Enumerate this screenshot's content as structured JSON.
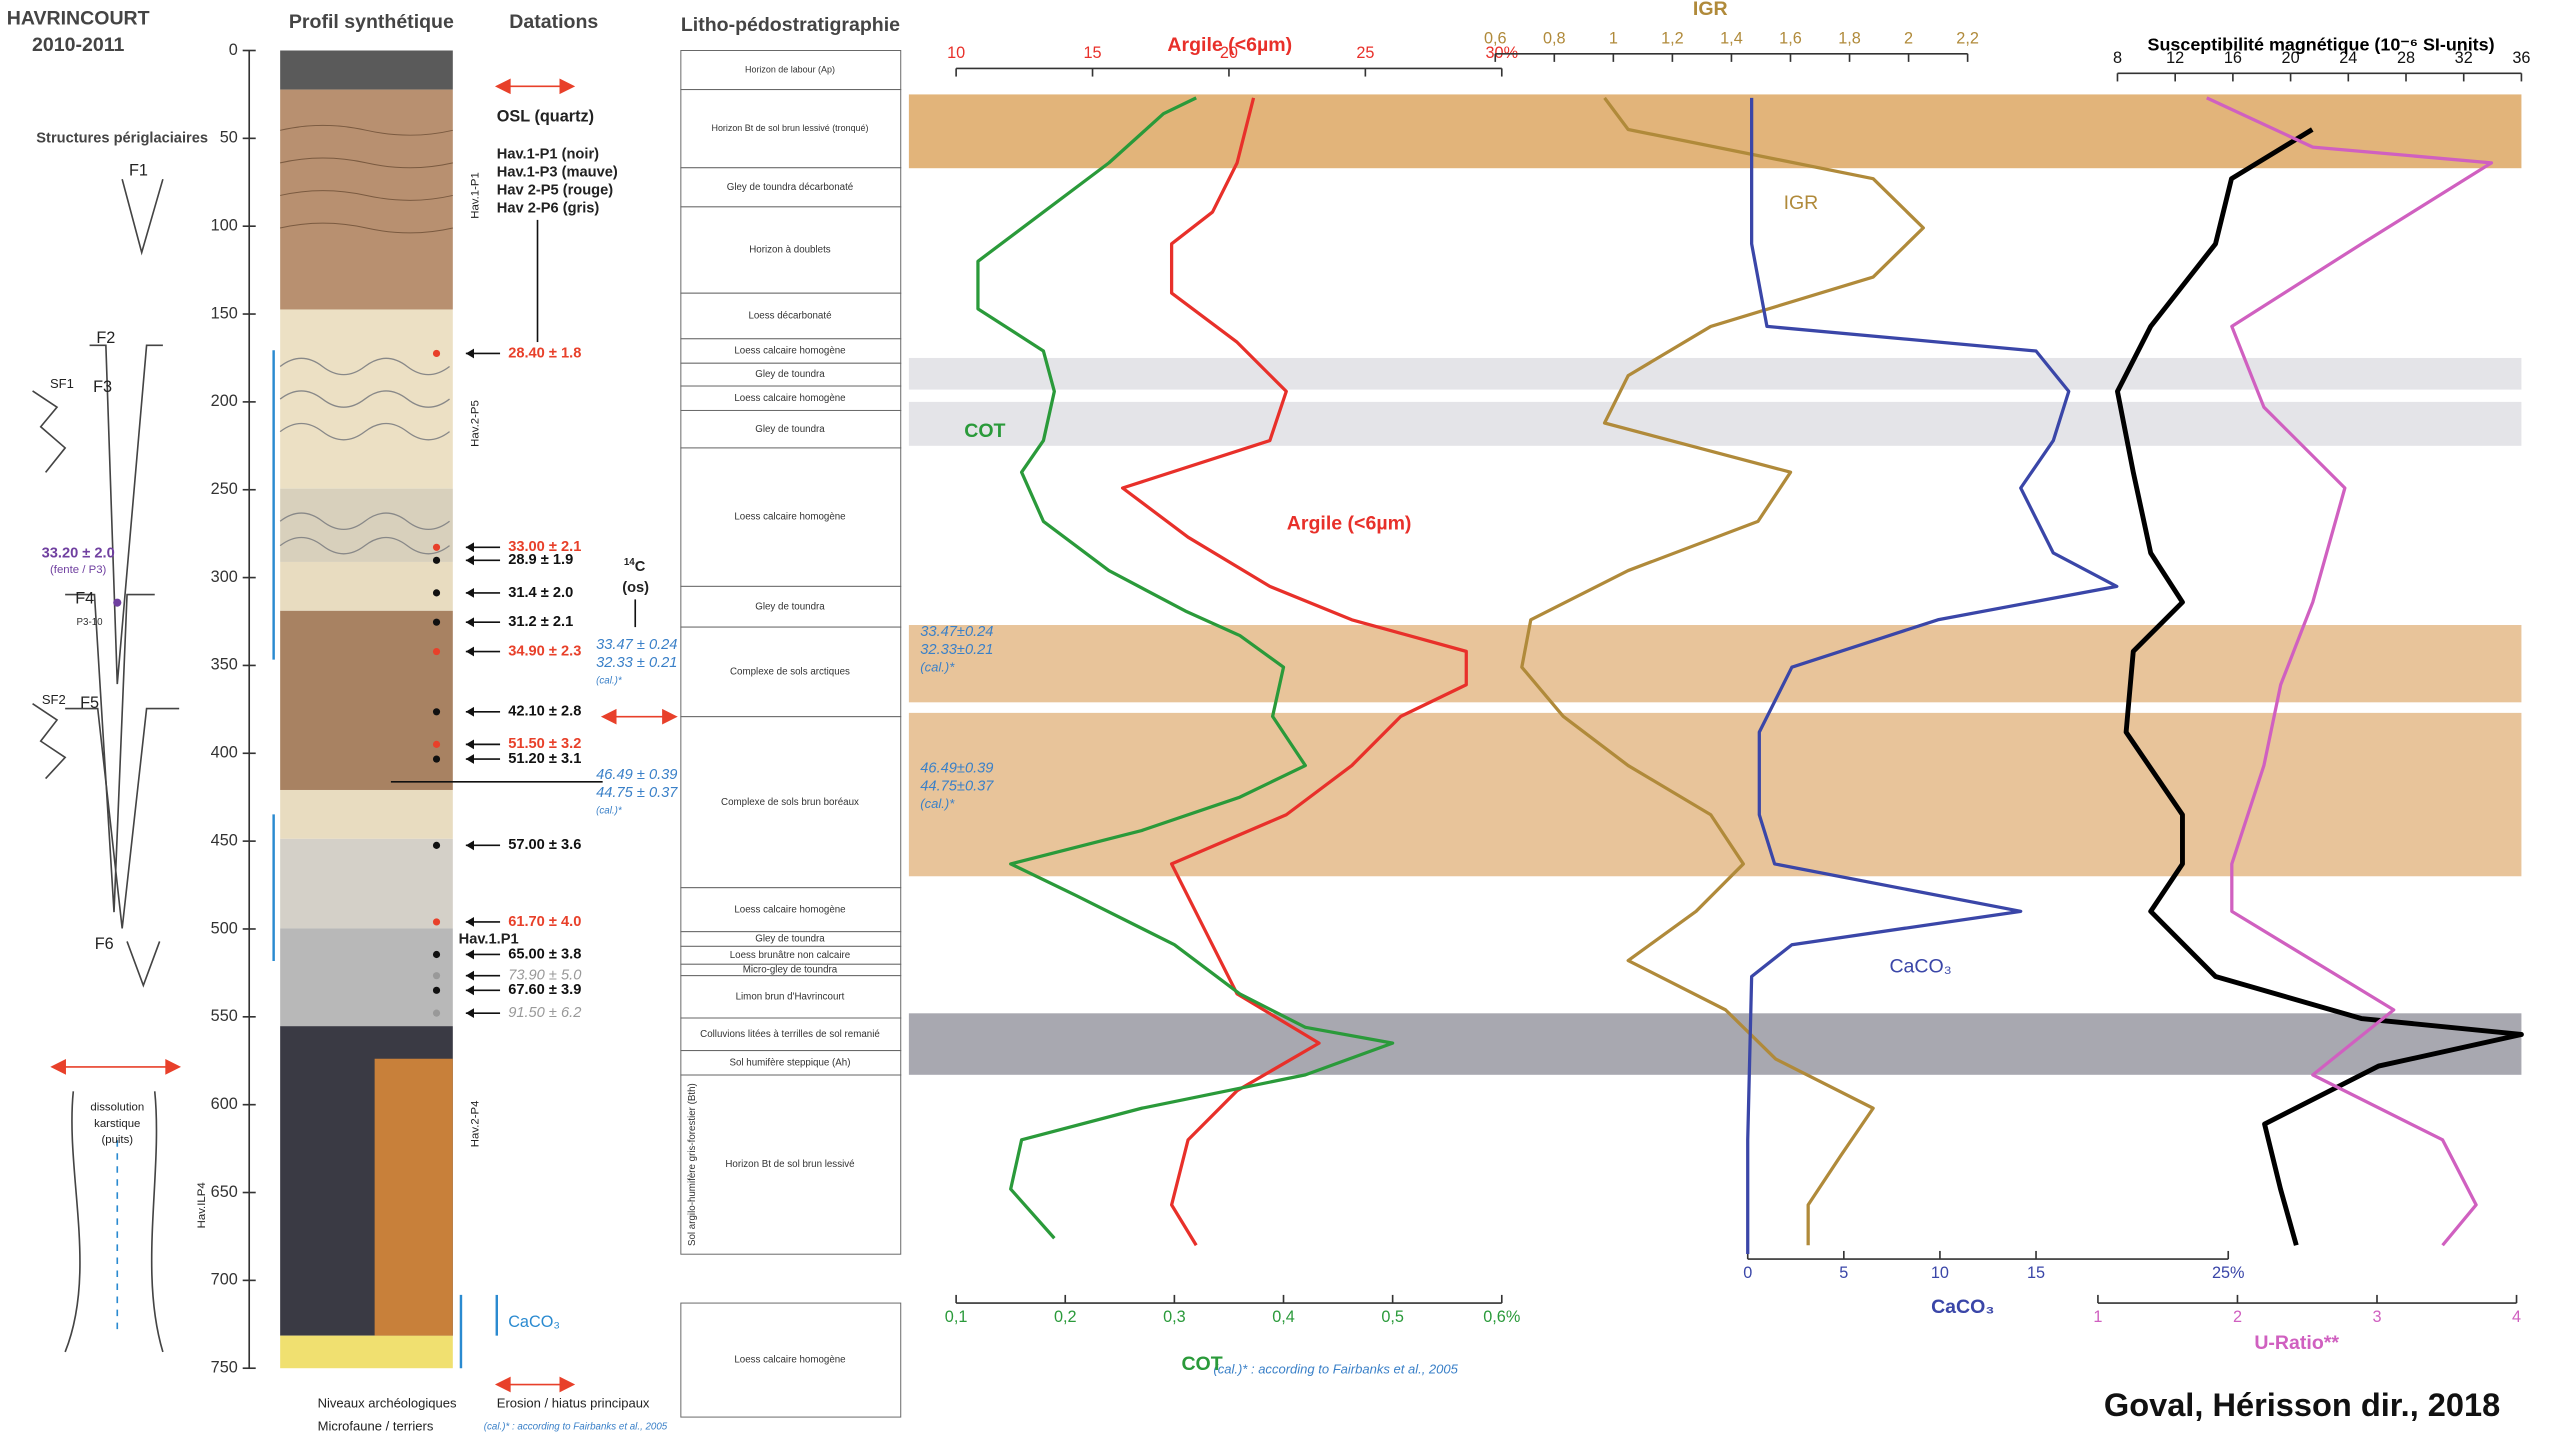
{
  "header": {
    "title": "HAVRINCOURT",
    "subtitle": "2010-2011",
    "credit": "Goval, Hérisson dir., 2018"
  },
  "columns": {
    "structures": "Structures périglaciaires",
    "profile": "Profil synthétique",
    "datations": "Datations",
    "litho": "Litho-pédostratigraphie"
  },
  "structures": {
    "labels": [
      "F1",
      "F2",
      "F3",
      "SF1",
      "F4",
      "SF2",
      "F5",
      "F6"
    ],
    "date": "33.20 ± 2.0",
    "date_note": "(fente / P3)",
    "sample": "P3-10",
    "karst": [
      "dissolution",
      "karstique",
      "(puits)"
    ]
  },
  "profile": {
    "sections": [
      "Hav.1-P1",
      "Hav.2-P5",
      "Hav.1.P1",
      "Hav.2-P4",
      "Hav.ILP4"
    ],
    "caco3": "CaCO₃"
  },
  "osl_legend": {
    "title": "OSL (quartz)",
    "items": [
      "Hav.1-P1 (noir)",
      "Hav.1-P3 (mauve)",
      "Hav 2-P5 (rouge)",
      "Hav 2-P6 (gris)"
    ]
  },
  "c14": {
    "mass": "14",
    "element": "C",
    "note": "(os)"
  },
  "datations": [
    {
      "label": "28.40 ± 1.8",
      "color": "#e8402a"
    },
    {
      "label": "33.00 ± 2.1",
      "color": "#e8402a"
    },
    {
      "label": "28.9 ± 1.9",
      "color": "#111111"
    },
    {
      "label": "31.4 ± 2.0",
      "color": "#111111"
    },
    {
      "label": "31.2 ± 2.1",
      "color": "#111111"
    },
    {
      "label": "34.90 ± 2.3",
      "color": "#e8402a"
    },
    {
      "label": "42.10 ± 2.8",
      "color": "#111111"
    },
    {
      "label": "51.50 ± 3.2",
      "color": "#e8402a"
    },
    {
      "label": "51.20 ± 3.1",
      "color": "#111111"
    },
    {
      "label": "57.00 ± 3.6",
      "color": "#111111"
    },
    {
      "label": "61.70 ± 4.0",
      "color": "#e8402a"
    },
    {
      "label": "65.00 ± 3.8",
      "color": "#111111"
    },
    {
      "label": "73.90 ± 5.0",
      "color": "#999999"
    },
    {
      "label": "67.60 ± 3.9",
      "color": "#111111"
    },
    {
      "label": "91.50 ± 6.2",
      "color": "#999999"
    }
  ],
  "calibrated": [
    [
      "33.47 ± 0.24",
      "32.33 ± 0.21",
      "(cal.)*"
    ],
    [
      "46.49 ± 0.39",
      "44.75 ± 0.37",
      "(cal.)*"
    ]
  ],
  "calibrated_chart": [
    [
      "33.47±0.24",
      "32.33±0.21",
      "(cal.)*"
    ],
    [
      "46.49±0.39",
      "44.75±0.37",
      "(cal.)*"
    ]
  ],
  "litho": [
    "Horizon de labour (Ap)",
    "Horizon Bt de sol brun lessivé (tronqué)",
    "Gley de toundra décarbonaté",
    "Horizon à doublets",
    "Loess décarbonaté",
    "Loess calcaire homogène",
    "Gley de toundra",
    "Loess calcaire homogène",
    "Gley de toundra",
    "Loess calcaire homogène",
    "Gley de toundra",
    "Complexe de sols arctiques",
    "Complexe de sols brun boréaux",
    "Loess calcaire homogène",
    "Gley de toundra",
    "Loess brunâtre non calcaire",
    "Micro-gley de toundra",
    "Limon brun d'Havrincourt",
    "Colluvions litées à terrilles de sol remanié",
    "Sol humifère steppique (Ah)",
    "Horizon Bt de sol brun lessivé",
    "Loess calcaire homogène"
  ],
  "litho_side": "Sol argilo-humifère gris-forestier (Bth)",
  "legend": [
    "Niveaux archéologiques",
    "Erosion / hiatus principaux",
    "Microfaune / terriers",
    "(cal.)* : according to Fairbanks et al., 2005"
  ],
  "chart_note": "(cal.)* : according to Fairbanks et al., 2005",
  "chart_data": {
    "type": "line",
    "ylim": [
      0,
      750
    ],
    "yticks": [
      0,
      50,
      100,
      150,
      200,
      250,
      300,
      350,
      400,
      450,
      500,
      550,
      600,
      650,
      700,
      750
    ],
    "series": [
      {
        "name": "Argile (<6µm)",
        "axis_title": "Argile (<6µm)",
        "color": "#e8302a",
        "xlim": [
          10,
          30
        ],
        "xticks": [
          10,
          15,
          20,
          25,
          {
            "value": 30,
            "label": "30%"
          }
        ],
        "depth": [
          27,
          64,
          92,
          110,
          138,
          166,
          194,
          222,
          249,
          277,
          305,
          324,
          342,
          361,
          379,
          407,
          435,
          463,
          500,
          537,
          565,
          592,
          620,
          657,
          680
        ],
        "values": [
          20.9,
          20.3,
          19.4,
          17.9,
          17.9,
          20.3,
          22.1,
          21.5,
          16.1,
          18.5,
          21.5,
          24.5,
          28.7,
          28.7,
          26.3,
          24.5,
          22.1,
          17.9,
          19.1,
          20.3,
          23.3,
          20.3,
          18.5,
          17.9,
          18.8
        ]
      },
      {
        "name": "IGR",
        "axis_title": "IGR",
        "color": "#b08a3a",
        "xlim": [
          0.6,
          2.2
        ],
        "xticks": [
          {
            "value": 0.6,
            "label": "0,6"
          },
          {
            "value": 0.8,
            "label": "0,8"
          },
          1,
          {
            "value": 1.2,
            "label": "1,2"
          },
          {
            "value": 1.4,
            "label": "1,4"
          },
          {
            "value": 1.6,
            "label": "1,6"
          },
          {
            "value": 1.8,
            "label": "1,8"
          },
          2,
          {
            "value": 2.2,
            "label": "2,2"
          }
        ],
        "depth": [
          27,
          45,
          73,
          101,
          129,
          157,
          185,
          212,
          240,
          268,
          296,
          324,
          351,
          379,
          407,
          435,
          463,
          490,
          518,
          546,
          574,
          602,
          629,
          657,
          680
        ],
        "values": [
          0.97,
          1.05,
          1.88,
          2.05,
          1.88,
          1.33,
          1.05,
          0.97,
          1.6,
          1.49,
          1.05,
          0.72,
          0.69,
          0.83,
          1.05,
          1.33,
          1.44,
          1.28,
          1.05,
          1.38,
          1.55,
          1.88,
          1.77,
          1.66,
          1.66
        ]
      },
      {
        "name": "COT",
        "axis_title": "COT",
        "color": "#2a9a3a",
        "xlim": [
          0.1,
          0.6
        ],
        "xticks": [
          {
            "value": 0.1,
            "label": "0,1"
          },
          {
            "value": 0.2,
            "label": "0,2"
          },
          {
            "value": 0.3,
            "label": "0,3"
          },
          {
            "value": 0.4,
            "label": "0,4"
          },
          {
            "value": 0.5,
            "label": "0,5"
          },
          {
            "value": 0.6,
            "label": "0,6%"
          }
        ],
        "depth": [
          27,
          36,
          64,
          92,
          120,
          147,
          171,
          194,
          222,
          240,
          268,
          296,
          319,
          333,
          351,
          379,
          407,
          425,
          444,
          463,
          481,
          509,
          537,
          556,
          565,
          583,
          602,
          620,
          648,
          676
        ],
        "values": [
          0.32,
          0.29,
          0.24,
          0.18,
          0.12,
          0.12,
          0.18,
          0.19,
          0.18,
          0.16,
          0.18,
          0.24,
          0.31,
          0.36,
          0.4,
          0.39,
          0.42,
          0.36,
          0.27,
          0.15,
          0.21,
          0.3,
          0.36,
          0.42,
          0.5,
          0.42,
          0.27,
          0.16,
          0.15,
          0.19
        ]
      },
      {
        "name": "CaCO₃",
        "axis_title": "CaCO₃",
        "color": "#3a46a8",
        "xlim": [
          0,
          25
        ],
        "xticks": [
          0,
          5,
          10,
          15,
          {
            "value": 25,
            "label": "25%"
          }
        ],
        "depth": [
          27,
          110,
          157,
          171,
          194,
          222,
          249,
          286,
          305,
          324,
          351,
          388,
          435,
          463,
          490,
          509,
          527,
          620,
          685
        ],
        "values": [
          0.2,
          0.2,
          1,
          15,
          16.7,
          15.9,
          14.2,
          15.9,
          19.2,
          9.9,
          2.3,
          0.6,
          0.6,
          1.4,
          14.2,
          2.3,
          0.2,
          0,
          0
        ]
      },
      {
        "name": "Susceptibilité magnétique (10⁻⁶ SI-units)",
        "axis_title": "Susceptibilité magnétique (10⁻⁶ SI-units)",
        "color": "#000000",
        "xlim": [
          8,
          36
        ],
        "xticks": [
          8,
          12,
          16,
          20,
          24,
          28,
          32,
          36
        ],
        "depth": [
          45,
          73,
          110,
          157,
          194,
          240,
          286,
          314,
          342,
          388,
          435,
          463,
          490,
          527,
          551,
          560,
          578,
          611,
          648,
          680
        ],
        "values": [
          21.5,
          15.9,
          14.8,
          10.3,
          8,
          9.1,
          10.3,
          12.5,
          9.1,
          8.6,
          12.5,
          12.5,
          10.3,
          14.8,
          24.9,
          36,
          26.1,
          18.2,
          19.3,
          20.4
        ]
      },
      {
        "name": "U-Ratio**",
        "axis_title": "U-Ratio**",
        "color": "#d060c0",
        "xlim": [
          1,
          4
        ],
        "xticks": [
          1,
          2,
          3,
          4
        ],
        "depth": [
          27,
          55,
          64,
          110,
          157,
          203,
          249,
          314,
          361,
          407,
          463,
          490,
          546,
          583,
          620,
          657,
          680
        ],
        "values": [
          1.78,
          2.54,
          3.82,
          2.89,
          1.96,
          2.19,
          2.77,
          2.54,
          2.31,
          2.19,
          1.96,
          1.96,
          3.12,
          2.54,
          3.47,
          3.71,
          3.47
        ]
      }
    ]
  }
}
